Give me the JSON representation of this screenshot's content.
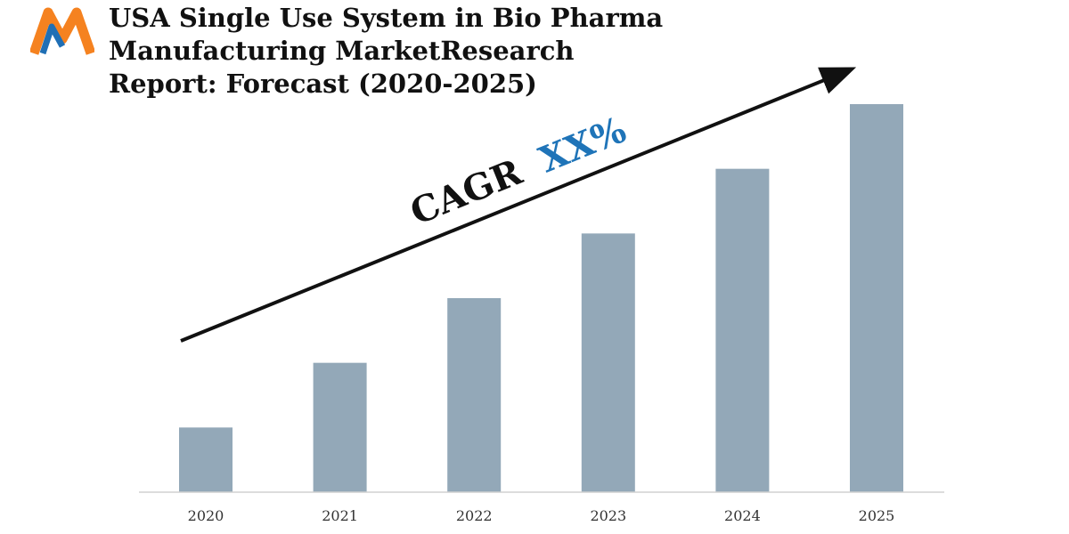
{
  "title_lines": [
    "USA Single Use System in Bio Pharma",
    "Manufacturing MarketResearch",
    "Report: Forecast (2020-2025)"
  ],
  "colors": {
    "bar": "#93a8b8",
    "cagr_text": "#111111",
    "cagr_value": "#1f74b8",
    "logo_orange": "#f58220",
    "logo_blue": "#1f6fb5",
    "axis": "#d0d0d0"
  },
  "chart_data": {
    "type": "bar",
    "categories": [
      "2020",
      "2021",
      "2022",
      "2023",
      "2024",
      "2025"
    ],
    "values": [
      1,
      2,
      3,
      4,
      5,
      6
    ],
    "ylim": [
      0,
      6
    ],
    "grid": false,
    "annotation": {
      "label": "CAGR",
      "value": "XX%",
      "arrow": "rising trend arrow"
    }
  }
}
